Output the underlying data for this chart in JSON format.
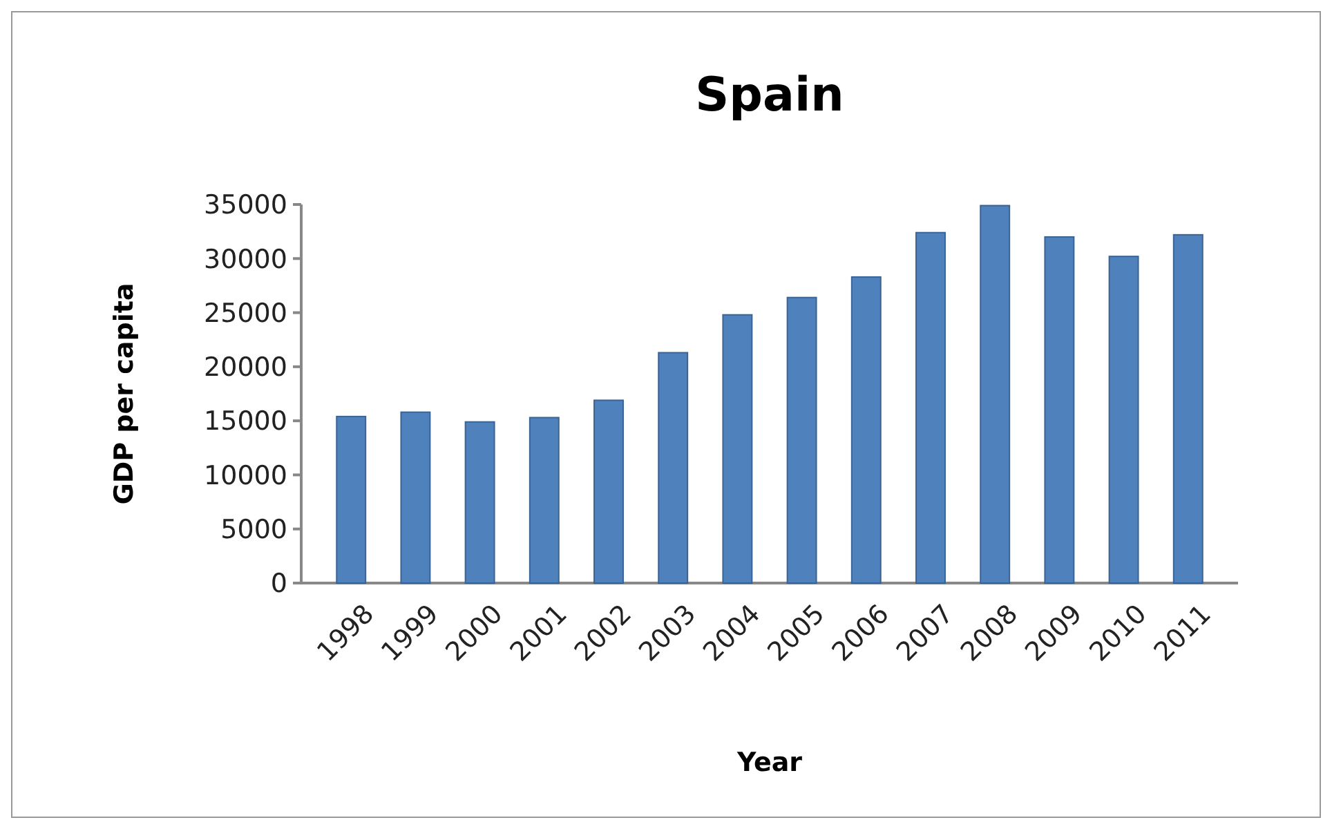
{
  "chart_data": {
    "type": "bar",
    "title": "Spain",
    "xlabel": "Year",
    "ylabel": "GDP per capita",
    "categories": [
      "1998",
      "1999",
      "2000",
      "2001",
      "2002",
      "2003",
      "2004",
      "2005",
      "2006",
      "2007",
      "2008",
      "2009",
      "2010",
      "2011"
    ],
    "values": [
      15400,
      15800,
      14900,
      15300,
      16900,
      21300,
      24800,
      26400,
      28300,
      32400,
      34900,
      32000,
      30200,
      32200
    ],
    "color": "#4f81bd",
    "ylim": [
      0,
      35000
    ],
    "yticks": [
      0,
      5000,
      10000,
      15000,
      20000,
      25000,
      30000,
      35000
    ],
    "grid": false
  }
}
